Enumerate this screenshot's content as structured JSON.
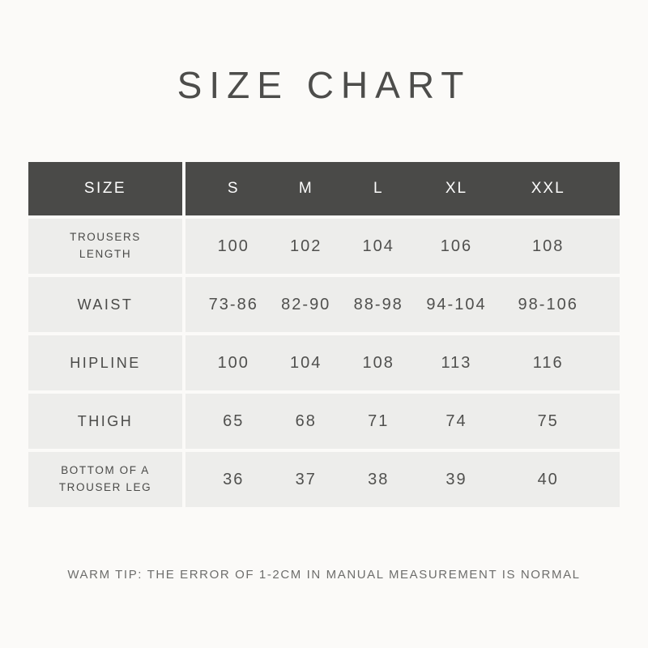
{
  "page": {
    "title": "SIZE CHART",
    "note": "WARM TIP: THE ERROR OF 1-2CM IN MANUAL MEASUREMENT IS NORMAL"
  },
  "colors": {
    "page_background": "#fbfaf8",
    "header_background": "#4a4a48",
    "header_text": "#fdfdfd",
    "row_background": "#ededeb",
    "label_text": "#4a4a48",
    "value_text": "#50504e",
    "title_text": "#4d4d4b",
    "footer_text": "#6e6e6c"
  },
  "chart_data": {
    "type": "table",
    "title": "SIZE CHART",
    "columns": [
      "SIZE",
      "S",
      "M",
      "L",
      "XL",
      "XXL"
    ],
    "rows": [
      {
        "label": "TROUSERS LENGTH",
        "values": [
          "100",
          "102",
          "104",
          "106",
          "108"
        ]
      },
      {
        "label": "WAIST",
        "values": [
          "73-86",
          "82-90",
          "88-98",
          "94-104",
          "98-106"
        ]
      },
      {
        "label": "HIPLINE",
        "values": [
          "100",
          "104",
          "108",
          "113",
          "116"
        ]
      },
      {
        "label": "THIGH",
        "values": [
          "65",
          "68",
          "71",
          "74",
          "75"
        ]
      },
      {
        "label": "BOTTOM OF A TROUSER LEG",
        "values": [
          "36",
          "37",
          "38",
          "39",
          "40"
        ]
      }
    ],
    "note": "WARM TIP: THE ERROR OF 1-2CM IN MANUAL MEASUREMENT IS NORMAL"
  }
}
